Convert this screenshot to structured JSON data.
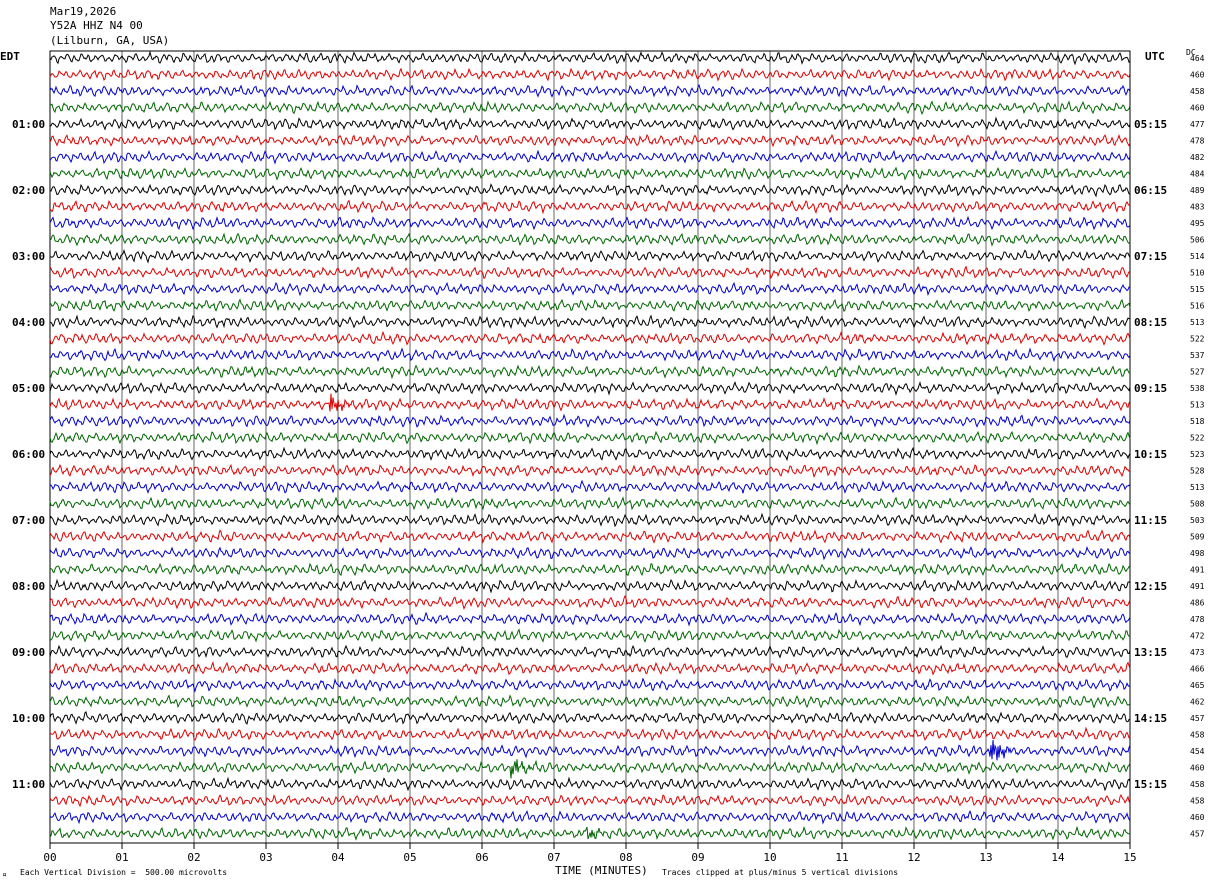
{
  "header": {
    "date": "Mar19,2026",
    "station": "Y52A HHZ N4 00",
    "location": "(Lilburn, GA, USA)"
  },
  "axes": {
    "left_unit": "EDT",
    "right_unit": "UTC",
    "dc_label": "DC",
    "x_label": "TIME (MINUTES)"
  },
  "footer": {
    "scale": "Each Vertical Division =  500.00 microvolts",
    "clip": "Traces clipped at plus/minus 5 vertical divisions"
  },
  "colors": {
    "traces": [
      "#000000",
      "#dd0000",
      "#0000cc",
      "#006600"
    ],
    "grid": "#000000"
  },
  "chart_data": {
    "type": "line",
    "title": "",
    "x_ticks": [
      "00",
      "01",
      "02",
      "03",
      "04",
      "05",
      "06",
      "07",
      "08",
      "09",
      "10",
      "11",
      "12",
      "13",
      "14",
      "15"
    ],
    "xlim": [
      0,
      15
    ],
    "rows_per_hour": 4,
    "left_hour_labels": [
      "01:00",
      "02:00",
      "03:00",
      "04:00",
      "05:00",
      "06:00",
      "07:00",
      "08:00",
      "09:00",
      "10:00",
      "11:00"
    ],
    "right_hour_labels": [
      "05:15",
      "06:15",
      "07:15",
      "08:15",
      "09:15",
      "10:15",
      "11:15",
      "12:15",
      "13:15",
      "14:15",
      "15:15"
    ],
    "dc_offsets": [
      464,
      460,
      458,
      460,
      477,
      478,
      482,
      484,
      489,
      483,
      495,
      506,
      514,
      510,
      515,
      516,
      513,
      522,
      537,
      527,
      538,
      513,
      518,
      522,
      523,
      528,
      513,
      508,
      503,
      509,
      498,
      491,
      491,
      486,
      478,
      472,
      473,
      466,
      465,
      462,
      457,
      458,
      454,
      460,
      458,
      458,
      460,
      457
    ],
    "events": [
      {
        "row": 21,
        "minute": 3.9,
        "amplitude": 2.5
      },
      {
        "row": 42,
        "minute": 13.1,
        "amplitude": 3.0
      },
      {
        "row": 43,
        "minute": 6.45,
        "amplitude": 2.0
      },
      {
        "row": 47,
        "minute": 7.5,
        "amplitude": 1.2
      }
    ]
  }
}
